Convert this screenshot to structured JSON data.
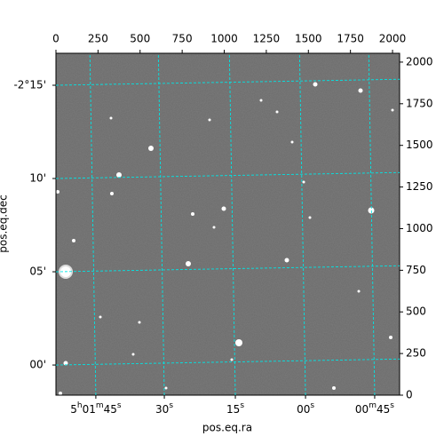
{
  "chart_data": {
    "type": "image",
    "xlabel": "pos.eq.ra",
    "ylabel": "pos.eq.dec",
    "xlim": [
      0,
      2042
    ],
    "ylim": [
      0,
      2053
    ],
    "xticks": [
      0,
      250,
      500,
      750,
      1000,
      1250,
      1500,
      1750,
      2000
    ],
    "yticks": [
      0,
      250,
      500,
      750,
      1000,
      1250,
      1500,
      1750,
      2000
    ],
    "ra_ticks": [
      {
        "value": 237,
        "label": "5h01m45s"
      },
      {
        "value": 644,
        "label": "30s"
      },
      {
        "value": 1066,
        "label": "15s"
      },
      {
        "value": 1483,
        "label": "00s"
      },
      {
        "value": 1894,
        "label": "00m45s"
      }
    ],
    "dec_ticks": [
      {
        "value": 181,
        "label": "00'"
      },
      {
        "value": 741,
        "label": "05'"
      },
      {
        "value": 1301,
        "label": "10'"
      },
      {
        "value": 1861,
        "label": "-2°15'"
      }
    ],
    "rotation": 1,
    "grid": true,
    "grid_color": "#00e5e5"
  }
}
